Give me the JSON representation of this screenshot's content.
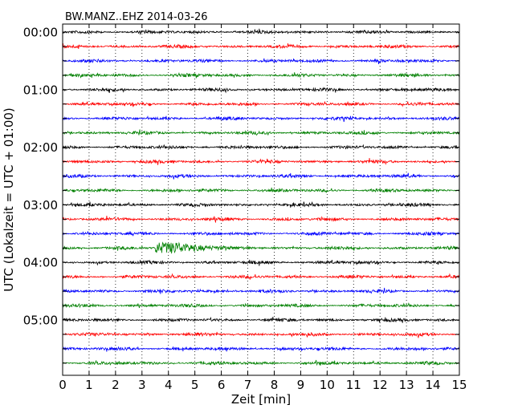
{
  "chart_data": {
    "type": "line",
    "title": "BW.MANZ..EHZ 2014-03-26",
    "xlabel": "Zeit  [min]",
    "ylabel": "UTC (Lokalzeit = UTC + 01:00)",
    "xlim": [
      0,
      15
    ],
    "x_ticks": [
      "0",
      "1",
      "2",
      "3",
      "4",
      "5",
      "6",
      "7",
      "8",
      "9",
      "10",
      "11",
      "12",
      "13",
      "14",
      "15"
    ],
    "y_tick_labels": [
      "00:00",
      "01:00",
      "02:00",
      "03:00",
      "04:00",
      "05:00"
    ],
    "traces_per_hour": 4,
    "trace_minutes": 15,
    "trace_count": 24,
    "grid": true,
    "series_colors": [
      "#000000",
      "#ff0000",
      "#0000ff",
      "#008000"
    ],
    "events": [
      {
        "row_start": "03:45",
        "minute_start": 3.5,
        "minute_end": 4.2,
        "label": ""
      }
    ]
  }
}
